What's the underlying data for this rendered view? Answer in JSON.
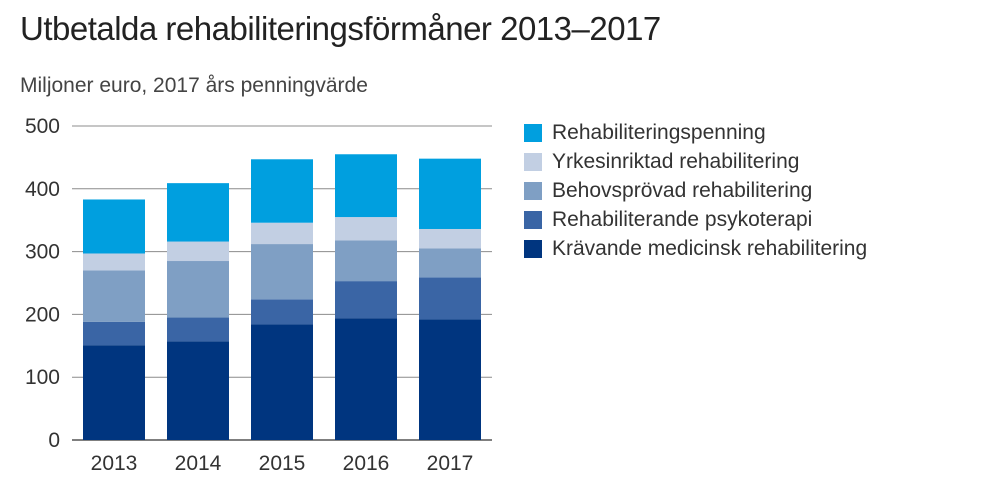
{
  "title": "Utbetalda rehabiliteringsförmåner 2013–2017",
  "subtitle": "Miljoner euro, 2017 års penningvärde",
  "chart_data": {
    "type": "bar",
    "stacked": true,
    "categories": [
      "2013",
      "2014",
      "2015",
      "2016",
      "2017"
    ],
    "ylim": [
      0,
      500
    ],
    "yticks": [
      0,
      100,
      200,
      300,
      400,
      500
    ],
    "grid": true,
    "legend_position": "right",
    "series": [
      {
        "name": "Krävande medicinsk rehabilitering",
        "color": "#00357f",
        "values": [
          151,
          157,
          184,
          194,
          192
        ]
      },
      {
        "name": "Rehabiliterande psykoterapi",
        "color": "#3a65a5",
        "values": [
          37,
          38,
          40,
          59,
          67
        ]
      },
      {
        "name": "Behovsprövad rehabilitering",
        "color": "#7f9fc4",
        "values": [
          82,
          90,
          88,
          65,
          46
        ]
      },
      {
        "name": "Yrkesinriktad rehabilitering",
        "color": "#c2cfe3",
        "values": [
          27,
          31,
          34,
          37,
          31
        ]
      },
      {
        "name": "Rehabiliteringspenning",
        "color": "#009fdf",
        "values": [
          86,
          93,
          101,
          100,
          112
        ]
      }
    ]
  }
}
